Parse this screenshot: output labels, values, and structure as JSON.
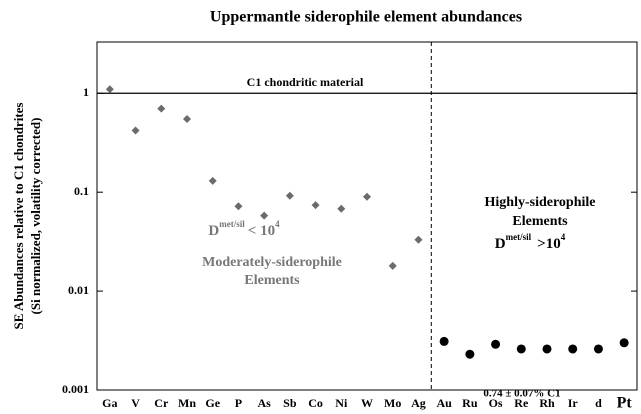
{
  "chart_data": {
    "type": "scatter",
    "title": "Uppermantle siderophile element abundances",
    "y_label": [
      "SE Abundances relative to C1 chondrites",
      "(Si normalized, volatility corrected)"
    ],
    "categories": [
      "Ga",
      "V",
      "Cr",
      "Mn",
      "Ge",
      "P",
      "As",
      "Sb",
      "Co",
      "Ni",
      "W",
      "Mo",
      "Ag",
      "Au",
      "Ru",
      "Os",
      "Re",
      "Rh",
      "Ir",
      "d",
      "Pt"
    ],
    "series": [
      {
        "color": "#6b6b6b",
        "marker": "diamond",
        "values": [
          1.1,
          0.42,
          0.7,
          0.55,
          0.13,
          0.072,
          0.058,
          0.092,
          0.074,
          0.068,
          0.09,
          0.018,
          0.033,
          null,
          null,
          null,
          null,
          null,
          null,
          null,
          null
        ]
      },
      {
        "color": "#000000",
        "marker": "circle",
        "values": [
          null,
          null,
          null,
          null,
          null,
          null,
          null,
          null,
          null,
          null,
          null,
          null,
          null,
          0.0031,
          0.0023,
          0.0029,
          0.0026,
          0.0026,
          0.0026,
          0.0026,
          0.003
        ]
      }
    ],
    "ylim": [
      0.001,
      3.3
    ],
    "log_y": true,
    "yticks": [
      {
        "value": 0.001,
        "label": "0.001"
      },
      {
        "value": 0.01,
        "label": "0.01"
      },
      {
        "value": 0.1,
        "label": "0.1"
      },
      1
    ],
    "reference_line": {
      "value": 1,
      "label": "C1 chondritic material"
    },
    "annotations": {
      "moderate_d": {
        "base": "D",
        "sup": "met/sil",
        "rel": "< 10",
        "exp": "4"
      },
      "moderate_label": [
        "Moderately-siderophile",
        "Elements"
      ],
      "high_label": [
        "Highly-siderophile",
        "Elements"
      ],
      "high_d": {
        "base": "D",
        "sup": "met/sil",
        "rel": ">10",
        "exp": "4"
      },
      "high_value": "0.74 ± 0.07% C1"
    }
  }
}
